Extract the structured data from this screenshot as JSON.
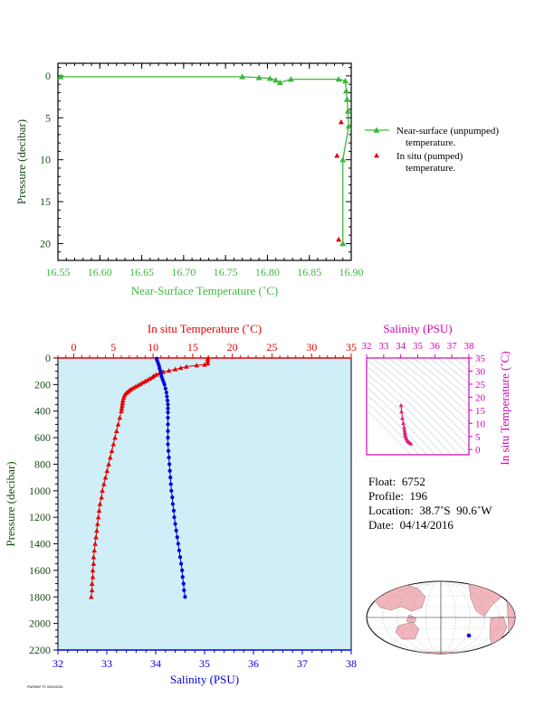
{
  "colors": {
    "green": "#3cb83c",
    "red": "#e60000",
    "blue": "#0000dd",
    "magenta": "#d400b0",
    "axis_dark": "#1a4a1a",
    "panel_bg": "#cfeef7",
    "land": "#f3b5bd",
    "ocean": "#ffffff"
  },
  "info": {
    "float": "Float:  6752",
    "profile": "Profile:  196",
    "location": "Location:  38.7˚S  90.6˚W",
    "date": "Date:  04/14/2016"
  },
  "footer": "FWD9697 P1 05/03/2016",
  "chart_data": [
    {
      "type": "line",
      "id": "near-surface",
      "xlabel": "Near-Surface Temperature (˚C)",
      "ylabel": "Pressure (decibar)",
      "xlim": [
        16.55,
        16.9
      ],
      "ylim": [
        22,
        -1.5
      ],
      "xticks": [
        16.55,
        16.6,
        16.65,
        16.7,
        16.75,
        16.8,
        16.85,
        16.9
      ],
      "xticklabels": [
        "16.55",
        "16.60",
        "16.65",
        "16.70",
        "16.75",
        "16.80",
        "16.85",
        "16.90"
      ],
      "yticks": [
        0,
        5,
        10,
        15,
        20
      ],
      "yticklabels": [
        "0",
        "5",
        "10",
        "15",
        "20"
      ],
      "legend": [
        {
          "label_line1": "Near-surface (unpumped)",
          "label_line2": "temperature."
        },
        {
          "label_line1": "In situ (pumped)",
          "label_line2": "temperature."
        }
      ],
      "series": [
        {
          "name": "Near-surface (unpumped) temperature.",
          "points": [
            [
              16.553,
              0.1
            ],
            [
              16.77,
              0.1
            ],
            [
              16.79,
              0.2
            ],
            [
              16.803,
              0.3
            ],
            [
              16.81,
              0.5
            ],
            [
              16.815,
              0.8
            ],
            [
              16.828,
              0.4
            ],
            [
              16.885,
              0.4
            ],
            [
              16.893,
              0.6
            ],
            [
              16.894,
              1.8
            ],
            [
              16.895,
              2.8
            ],
            [
              16.896,
              4.2
            ],
            [
              16.897,
              6.0
            ],
            [
              16.89,
              10.0
            ],
            [
              16.89,
              20.0
            ]
          ]
        },
        {
          "name": "In situ (pumped) temperature.",
          "points": [
            [
              16.888,
              5.5
            ],
            [
              16.883,
              9.5
            ],
            [
              16.885,
              19.5
            ]
          ]
        }
      ]
    },
    {
      "type": "line",
      "id": "profile",
      "x_top_label": "In situ Temperature (˚C)",
      "x_bottom_label": "Salinity (PSU)",
      "ylabel": "Pressure (decibar)",
      "temp_lim": [
        -2,
        35
      ],
      "temp_ticks": [
        0,
        5,
        10,
        15,
        20,
        25,
        30,
        35
      ],
      "sal_lim": [
        32,
        38
      ],
      "sal_ticks": [
        32,
        33,
        34,
        35,
        36,
        37,
        38
      ],
      "ylim": [
        2200,
        0
      ],
      "yticks": [
        0,
        200,
        400,
        600,
        800,
        1000,
        1200,
        1400,
        1600,
        1800,
        2000,
        2200
      ],
      "series": [
        {
          "name": "In situ Temperature",
          "points": [
            [
              16.9,
              5
            ],
            [
              16.9,
              20
            ],
            [
              16.9,
              40
            ],
            [
              16.5,
              50
            ],
            [
              15.5,
              55
            ],
            [
              14.2,
              65
            ],
            [
              13.5,
              75
            ],
            [
              12.8,
              85
            ],
            [
              12.0,
              95
            ],
            [
              11.3,
              105
            ],
            [
              10.8,
              115
            ],
            [
              10.4,
              125
            ],
            [
              10.1,
              135
            ],
            [
              9.9,
              145
            ],
            [
              9.6,
              155
            ],
            [
              9.3,
              165
            ],
            [
              9.0,
              175
            ],
            [
              8.7,
              185
            ],
            [
              8.4,
              195
            ],
            [
              8.1,
              205
            ],
            [
              7.8,
              215
            ],
            [
              7.5,
              225
            ],
            [
              7.2,
              235
            ],
            [
              7.0,
              245
            ],
            [
              6.8,
              255
            ],
            [
              6.6,
              265
            ],
            [
              6.4,
              280
            ],
            [
              6.3,
              300
            ],
            [
              6.2,
              320
            ],
            [
              6.15,
              340
            ],
            [
              6.1,
              360
            ],
            [
              6.05,
              380
            ],
            [
              6.0,
              400
            ],
            [
              5.8,
              450
            ],
            [
              5.6,
              500
            ],
            [
              5.4,
              550
            ],
            [
              5.2,
              600
            ],
            [
              5.0,
              650
            ],
            [
              4.8,
              700
            ],
            [
              4.6,
              750
            ],
            [
              4.4,
              800
            ],
            [
              4.2,
              850
            ],
            [
              4.0,
              900
            ],
            [
              3.8,
              950
            ],
            [
              3.6,
              1000
            ],
            [
              3.5,
              1050
            ],
            [
              3.3,
              1100
            ],
            [
              3.2,
              1150
            ],
            [
              3.1,
              1200
            ],
            [
              3.0,
              1250
            ],
            [
              2.9,
              1300
            ],
            [
              2.8,
              1350
            ],
            [
              2.7,
              1400
            ],
            [
              2.6,
              1450
            ],
            [
              2.5,
              1500
            ],
            [
              2.5,
              1550
            ],
            [
              2.4,
              1600
            ],
            [
              2.4,
              1650
            ],
            [
              2.3,
              1700
            ],
            [
              2.3,
              1750
            ],
            [
              2.2,
              1800
            ]
          ]
        },
        {
          "name": "Salinity",
          "points": [
            [
              34.02,
              5
            ],
            [
              34.03,
              20
            ],
            [
              34.05,
              40
            ],
            [
              34.07,
              60
            ],
            [
              34.08,
              80
            ],
            [
              34.1,
              100
            ],
            [
              34.11,
              120
            ],
            [
              34.12,
              140
            ],
            [
              34.14,
              160
            ],
            [
              34.16,
              180
            ],
            [
              34.18,
              200
            ],
            [
              34.2,
              230
            ],
            [
              34.22,
              260
            ],
            [
              34.23,
              290
            ],
            [
              34.24,
              320
            ],
            [
              34.25,
              350
            ],
            [
              34.25,
              380
            ],
            [
              34.25,
              410
            ],
            [
              34.25,
              450
            ],
            [
              34.25,
              500
            ],
            [
              34.25,
              550
            ],
            [
              34.25,
              600
            ],
            [
              34.25,
              650
            ],
            [
              34.26,
              700
            ],
            [
              34.27,
              750
            ],
            [
              34.28,
              800
            ],
            [
              34.29,
              850
            ],
            [
              34.3,
              900
            ],
            [
              34.31,
              950
            ],
            [
              34.32,
              1000
            ],
            [
              34.34,
              1050
            ],
            [
              34.35,
              1100
            ],
            [
              34.37,
              1150
            ],
            [
              34.38,
              1200
            ],
            [
              34.4,
              1250
            ],
            [
              34.42,
              1300
            ],
            [
              34.44,
              1350
            ],
            [
              34.46,
              1400
            ],
            [
              34.48,
              1450
            ],
            [
              34.5,
              1500
            ],
            [
              34.52,
              1550
            ],
            [
              34.54,
              1600
            ],
            [
              34.55,
              1650
            ],
            [
              34.57,
              1700
            ],
            [
              34.58,
              1750
            ],
            [
              34.6,
              1800
            ]
          ]
        }
      ]
    },
    {
      "type": "scatter",
      "id": "ts-diagram",
      "xlabel": "Salinity (PSU)",
      "ylabel": "In situ Temperature (˚C)",
      "xlim": [
        32,
        38
      ],
      "ylim": [
        -2,
        35
      ],
      "xticks": [
        32,
        33,
        34,
        35,
        36,
        37,
        38
      ],
      "yticks": [
        0,
        5,
        10,
        15,
        20,
        25,
        30,
        35
      ],
      "points": [
        [
          34.02,
          16.9
        ],
        [
          34.05,
          14.5
        ],
        [
          34.1,
          12.0
        ],
        [
          34.15,
          10.0
        ],
        [
          34.2,
          8.5
        ],
        [
          34.22,
          7.5
        ],
        [
          34.24,
          6.6
        ],
        [
          34.25,
          6.0
        ],
        [
          34.27,
          5.4
        ],
        [
          34.3,
          4.8
        ],
        [
          34.34,
          4.2
        ],
        [
          34.38,
          3.6
        ],
        [
          34.42,
          3.2
        ],
        [
          34.48,
          2.8
        ],
        [
          34.54,
          2.5
        ],
        [
          34.6,
          2.2
        ]
      ]
    }
  ]
}
